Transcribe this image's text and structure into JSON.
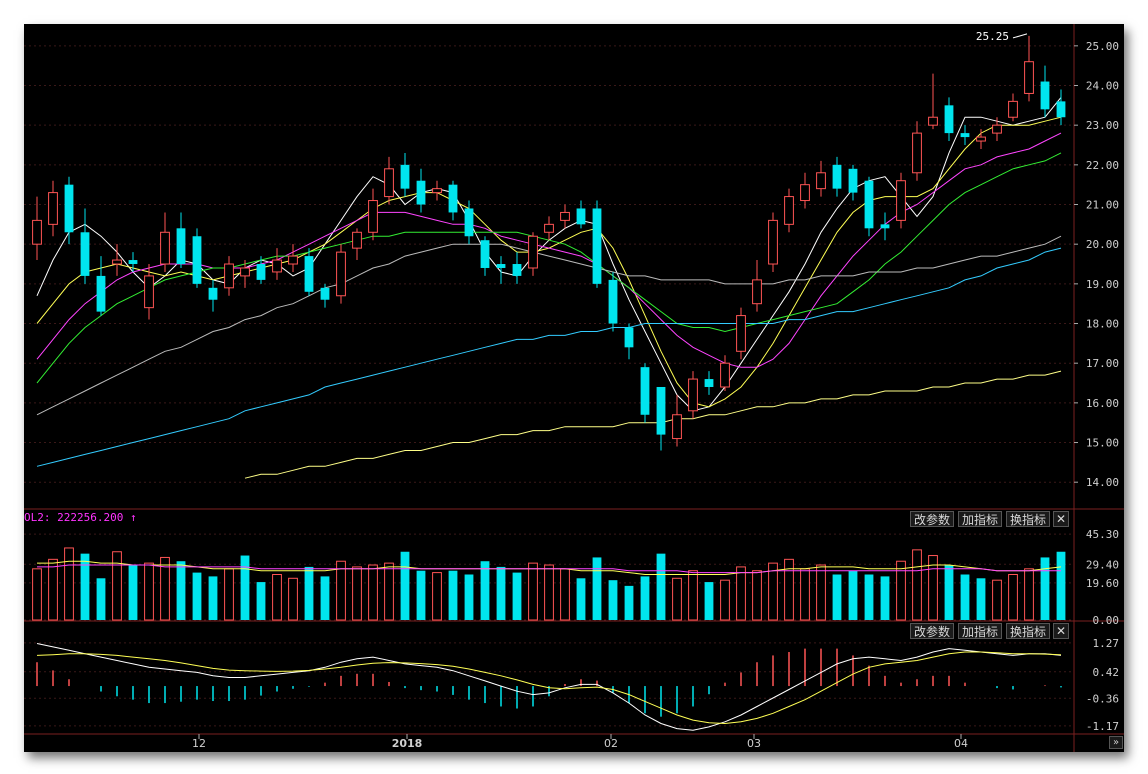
{
  "colors": {
    "up": "#ff5555",
    "down": "#00e5ee",
    "grid": "#3a1818",
    "axis": "#d0d0d0",
    "ma": [
      "#ffffff",
      "#ffff55",
      "#ff44ff",
      "#33ee33",
      "#bbbbbb",
      "#33ccff",
      "#ffff88"
    ]
  },
  "toolbar": {
    "params_label": "改参数",
    "add_indicator_label": "加指标",
    "switch_indicator_label": "换指标",
    "close_label": "✕",
    "expand_label": "»"
  },
  "volume": {
    "label": "OL2: 222256.200",
    "arrow": "↑"
  },
  "chart_data": [
    {
      "type": "candlestick",
      "title": "",
      "ylim": [
        13.4,
        25.5
      ],
      "y_ticks": [
        "25.00",
        "24.00",
        "23.00",
        "22.00",
        "21.00",
        "20.00",
        "19.00",
        "18.00",
        "17.00",
        "16.00",
        "15.00",
        "14.00"
      ],
      "x_labels": [
        "12",
        "2018",
        "02",
        "03",
        "04"
      ],
      "annotations": [
        {
          "text": "25.25",
          "value": 25.25
        }
      ],
      "candles": [],
      "moving_averages": [
        {
          "values": [
            18.7,
            19.6,
            20.3,
            20.5,
            20.2,
            19.8,
            19.3,
            18.9,
            19.2,
            19.6,
            19.5,
            19.1,
            19.0,
            19.4,
            19.6,
            19.5,
            19.2,
            19.4,
            20.0,
            20.6,
            21.2,
            21.7,
            21.5,
            21.0,
            21.3,
            21.4,
            21.3,
            20.6,
            19.8,
            19.3,
            19.2,
            19.7,
            20.1,
            20.4,
            20.6,
            20.5,
            19.5,
            18.6,
            17.8,
            17.0,
            16.2,
            15.8,
            15.9,
            16.4,
            17.0,
            17.6,
            18.2,
            18.8,
            19.5,
            20.3,
            20.9,
            21.4,
            21.6,
            21.7,
            21.2,
            20.7,
            21.2,
            22.3,
            23.2,
            23.2,
            23.1,
            23.0,
            23.1,
            23.2,
            23.7
          ]
        },
        {
          "values": [
            18.0,
            18.5,
            19.0,
            19.3,
            19.4,
            19.5,
            19.4,
            19.3,
            19.2,
            19.3,
            19.2,
            19.1,
            19.2,
            19.3,
            19.4,
            19.5,
            19.6,
            19.8,
            20.0,
            20.3,
            20.6,
            20.9,
            21.1,
            21.2,
            21.3,
            21.3,
            21.1,
            20.9,
            20.5,
            20.1,
            19.8,
            19.8,
            19.9,
            20.1,
            20.3,
            20.4,
            19.9,
            19.1,
            18.2,
            17.3,
            16.5,
            16.0,
            15.9,
            16.1,
            16.4,
            16.9,
            17.5,
            18.2,
            18.9,
            19.6,
            20.3,
            20.8,
            21.1,
            21.2,
            21.2,
            21.2,
            21.4,
            21.9,
            22.4,
            22.8,
            23.0,
            23.0,
            23.0,
            23.1,
            23.2
          ]
        },
        {
          "values": [
            17.1,
            17.6,
            18.1,
            18.5,
            18.8,
            19.1,
            19.3,
            19.4,
            19.5,
            19.5,
            19.5,
            19.4,
            19.4,
            19.4,
            19.5,
            19.6,
            19.8,
            20.0,
            20.2,
            20.4,
            20.6,
            20.8,
            20.8,
            20.8,
            20.7,
            20.6,
            20.5,
            20.5,
            20.4,
            20.2,
            20.1,
            20.0,
            19.9,
            19.8,
            19.7,
            19.5,
            19.2,
            18.9,
            18.5,
            18.1,
            17.7,
            17.4,
            17.2,
            17.0,
            16.9,
            16.9,
            17.1,
            17.5,
            18.1,
            18.7,
            19.2,
            19.7,
            20.1,
            20.5,
            20.8,
            21.0,
            21.3,
            21.6,
            21.9,
            22.0,
            22.2,
            22.3,
            22.4,
            22.6,
            22.8
          ]
        },
        {
          "values": [
            16.5,
            17.0,
            17.5,
            17.9,
            18.2,
            18.5,
            18.7,
            18.9,
            19.1,
            19.2,
            19.3,
            19.4,
            19.4,
            19.5,
            19.6,
            19.7,
            19.7,
            19.8,
            19.9,
            20.0,
            20.1,
            20.2,
            20.2,
            20.3,
            20.3,
            20.3,
            20.3,
            20.3,
            20.3,
            20.3,
            20.3,
            20.2,
            20.1,
            20.0,
            19.8,
            19.5,
            19.2,
            18.9,
            18.6,
            18.3,
            18.0,
            17.9,
            17.9,
            17.8,
            17.9,
            18.0,
            18.1,
            18.2,
            18.3,
            18.4,
            18.5,
            18.8,
            19.1,
            19.5,
            19.8,
            20.2,
            20.6,
            21.0,
            21.3,
            21.5,
            21.7,
            21.9,
            22.0,
            22.1,
            22.3
          ]
        },
        {
          "values": [
            15.7,
            15.9,
            16.1,
            16.3,
            16.5,
            16.7,
            16.9,
            17.1,
            17.3,
            17.4,
            17.6,
            17.8,
            17.9,
            18.1,
            18.2,
            18.4,
            18.5,
            18.7,
            18.9,
            19.0,
            19.2,
            19.4,
            19.5,
            19.7,
            19.8,
            19.9,
            20.0,
            20.0,
            20.0,
            20.0,
            19.9,
            19.8,
            19.7,
            19.6,
            19.5,
            19.4,
            19.3,
            19.2,
            19.2,
            19.1,
            19.1,
            19.1,
            19.1,
            19.0,
            19.0,
            19.0,
            19.0,
            19.1,
            19.1,
            19.2,
            19.2,
            19.2,
            19.3,
            19.3,
            19.3,
            19.4,
            19.4,
            19.5,
            19.6,
            19.7,
            19.7,
            19.8,
            19.9,
            20.0,
            20.2
          ]
        },
        {
          "values": [
            14.4,
            14.5,
            14.6,
            14.7,
            14.8,
            14.9,
            15.0,
            15.1,
            15.2,
            15.3,
            15.4,
            15.5,
            15.6,
            15.8,
            15.9,
            16.0,
            16.1,
            16.2,
            16.4,
            16.5,
            16.6,
            16.7,
            16.8,
            16.9,
            17.0,
            17.1,
            17.2,
            17.3,
            17.4,
            17.5,
            17.6,
            17.6,
            17.7,
            17.7,
            17.8,
            17.8,
            17.9,
            17.9,
            18.0,
            18.0,
            18.0,
            18.0,
            18.0,
            18.0,
            18.0,
            18.0,
            18.0,
            18.1,
            18.1,
            18.2,
            18.3,
            18.3,
            18.4,
            18.5,
            18.6,
            18.7,
            18.8,
            18.9,
            19.1,
            19.2,
            19.4,
            19.5,
            19.6,
            19.8,
            19.9
          ]
        },
        {
          "values": [
            null,
            null,
            null,
            null,
            null,
            null,
            null,
            null,
            null,
            null,
            null,
            null,
            null,
            14.1,
            14.2,
            14.2,
            14.3,
            14.4,
            14.4,
            14.5,
            14.6,
            14.6,
            14.7,
            14.8,
            14.8,
            14.9,
            15.0,
            15.0,
            15.1,
            15.2,
            15.2,
            15.3,
            15.3,
            15.4,
            15.4,
            15.4,
            15.4,
            15.5,
            15.5,
            15.5,
            15.6,
            15.6,
            15.7,
            15.7,
            15.8,
            15.9,
            15.9,
            16.0,
            16.0,
            16.1,
            16.1,
            16.2,
            16.2,
            16.3,
            16.3,
            16.3,
            16.4,
            16.4,
            16.5,
            16.5,
            16.6,
            16.6,
            16.7,
            16.7,
            16.8
          ]
        }
      ]
    },
    {
      "type": "bar",
      "title": "OL2: 222256.200",
      "ylim": [
        0,
        48
      ],
      "y_ticks": [
        "45.30",
        "29.40",
        "19.60",
        "0.00"
      ],
      "volumes": [],
      "averages": [
        {
          "color_index": 1,
          "values": []
        },
        {
          "color_index": 2,
          "values": []
        }
      ]
    },
    {
      "type": "line",
      "title": "",
      "ylim": [
        -1.35,
        1.5
      ],
      "y_ticks": [
        "1.27",
        "0.42",
        "-0.36",
        "-1.17"
      ],
      "dif": [],
      "dea": [],
      "macd_hist": []
    }
  ]
}
